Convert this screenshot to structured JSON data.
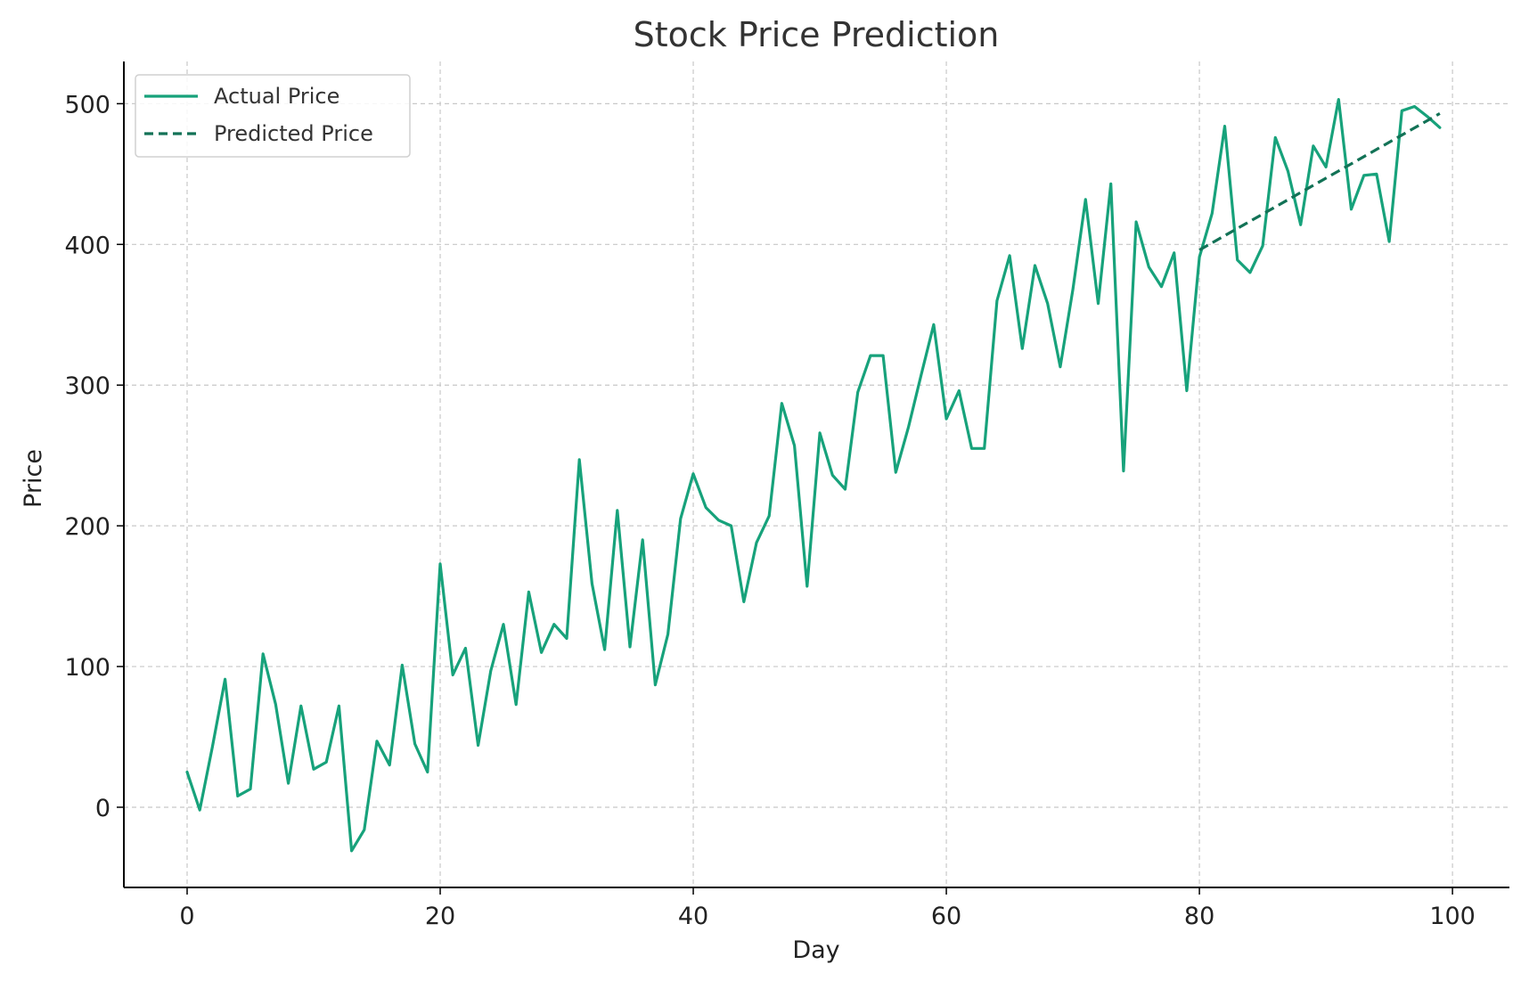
{
  "chart_data": {
    "type": "line",
    "title": "Stock Price Prediction",
    "xlabel": "Day",
    "ylabel": "Price",
    "xlim": [
      -5,
      104.5
    ],
    "ylim": [
      -57,
      530
    ],
    "xticks": [
      0,
      20,
      40,
      60,
      80,
      100
    ],
    "yticks": [
      0,
      100,
      200,
      300,
      400,
      500
    ],
    "grid": true,
    "legend_position": "top-left",
    "colors": {
      "actual": "#17a27b",
      "predicted": "#127256"
    },
    "series": [
      {
        "name": "Actual Price",
        "style": "solid",
        "x": [
          0,
          1,
          2,
          3,
          4,
          5,
          6,
          7,
          8,
          9,
          10,
          11,
          12,
          13,
          14,
          15,
          16,
          17,
          18,
          19,
          20,
          21,
          22,
          23,
          24,
          25,
          26,
          27,
          28,
          29,
          30,
          31,
          32,
          33,
          34,
          35,
          36,
          37,
          38,
          39,
          40,
          41,
          42,
          43,
          44,
          45,
          46,
          47,
          48,
          49,
          50,
          51,
          52,
          53,
          54,
          55,
          56,
          57,
          58,
          59,
          60,
          61,
          62,
          63,
          64,
          65,
          66,
          67,
          68,
          69,
          70,
          71,
          72,
          73,
          74,
          75,
          76,
          77,
          78,
          79,
          80,
          81,
          82,
          83,
          84,
          85,
          86,
          87,
          88,
          89,
          90,
          91,
          92,
          93,
          94,
          95,
          96,
          97,
          98,
          99
        ],
        "values": [
          25,
          -2,
          43,
          91,
          8,
          13,
          109,
          73,
          17,
          72,
          27,
          32,
          72,
          -31,
          -16,
          47,
          30,
          101,
          45,
          25,
          173,
          94,
          113,
          44,
          97,
          130,
          73,
          153,
          110,
          130,
          120,
          247,
          159,
          112,
          211,
          114,
          190,
          87,
          123,
          205,
          237,
          213,
          204,
          200,
          146,
          188,
          207,
          287,
          257,
          157,
          266,
          236,
          226,
          295,
          321,
          321,
          238,
          270,
          307,
          343,
          276,
          296,
          255,
          255,
          360,
          392,
          326,
          385,
          358,
          313,
          368,
          432,
          358,
          443,
          239,
          416,
          384,
          370,
          394,
          296,
          391,
          422,
          484,
          389,
          380,
          399,
          476,
          452,
          414,
          470,
          455,
          503,
          425,
          449,
          450,
          402,
          495,
          498,
          491,
          483
        ]
      },
      {
        "name": "Predicted Price",
        "style": "dashed",
        "x": [
          80,
          99
        ],
        "values": [
          396,
          493
        ]
      }
    ]
  }
}
